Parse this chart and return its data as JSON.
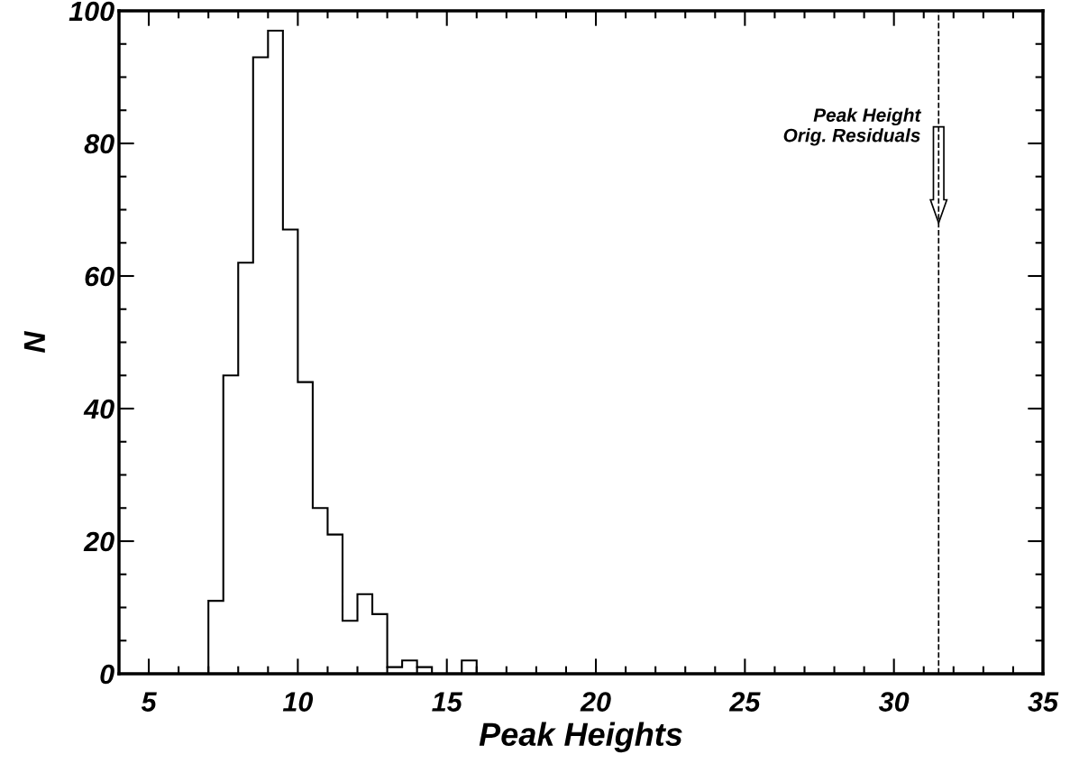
{
  "chart_data": {
    "type": "histogram",
    "xlabel": "Peak Heights",
    "ylabel": "N",
    "bins": [
      7,
      7.5,
      8,
      8.5,
      9,
      9.5,
      10,
      10.5,
      11,
      11.5,
      12,
      12.5,
      13,
      13.5,
      14,
      14.5,
      15,
      15.5,
      16
    ],
    "values": [
      11,
      45,
      62,
      93,
      97,
      67,
      44,
      25,
      21,
      8,
      12,
      9,
      1,
      2,
      1,
      0,
      0,
      2
    ],
    "color": "#000000",
    "xlim": [
      4,
      35
    ],
    "xticks": [
      5,
      10,
      15,
      20,
      25,
      30,
      35
    ],
    "ylim": [
      0,
      100
    ],
    "yticks": [
      0,
      20,
      40,
      60,
      80,
      100
    ],
    "grid": false,
    "ref_lines": [
      {
        "axis": "x",
        "value": 31.5,
        "label": "Peak Height\nOrig. Residuals",
        "line_style": "dashed",
        "color": "#000000"
      }
    ]
  }
}
